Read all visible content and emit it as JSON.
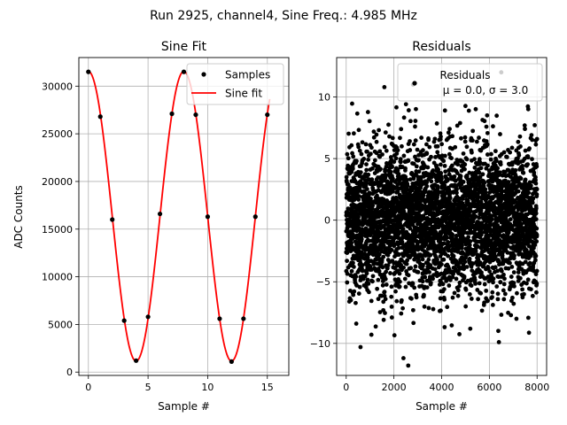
{
  "figure": {
    "suptitle": "Run 2925, channel4, Sine Freq.: 4.985 MHz"
  },
  "chart_data": [
    {
      "type": "scatter+line",
      "title": "Sine Fit",
      "xlabel": "Sample #",
      "ylabel": "ADC Counts",
      "xlim": [
        -0.8,
        16.8
      ],
      "ylim": [
        -350,
        33000
      ],
      "xticks": [
        0,
        5,
        10,
        15
      ],
      "yticks": [
        0,
        5000,
        10000,
        15000,
        20000,
        25000,
        30000
      ],
      "grid": true,
      "legend_position": "top-right",
      "series": [
        {
          "name": "Samples",
          "kind": "scatter",
          "color": "#000000",
          "x": [
            0,
            1,
            2,
            3,
            4,
            5,
            6,
            7,
            8,
            9,
            10,
            11,
            12,
            13,
            14,
            15
          ],
          "y": [
            31500,
            26800,
            16000,
            5400,
            1200,
            5800,
            16600,
            27100,
            31500,
            27000,
            16300,
            5600,
            1100,
            5600,
            16300,
            27000
          ]
        },
        {
          "name": "Sine fit",
          "kind": "line",
          "color": "#ff0000",
          "amplitude": 15200,
          "offset": 16350,
          "period_samples": 8,
          "phase_peak_at": 0,
          "x_range": [
            0,
            15.2
          ]
        }
      ]
    },
    {
      "type": "scatter",
      "title": "Residuals",
      "xlabel": "Sample #",
      "ylabel": "",
      "xlim": [
        -400,
        8400
      ],
      "ylim": [
        -12.6,
        13.2
      ],
      "xticks": [
        0,
        2000,
        4000,
        6000,
        8000
      ],
      "yticks": [
        -10,
        -5,
        0,
        5,
        10
      ],
      "grid": true,
      "legend_position": "top-right",
      "legend_lines": [
        "Residuals",
        "μ = 0.0, σ = 3.0"
      ],
      "mean": 0.0,
      "std": 3.0,
      "n_points": 8000,
      "color": "#000000",
      "notable_points": [
        {
          "x": 6500,
          "y": 12.0
        },
        {
          "x": 1600,
          "y": 10.8
        },
        {
          "x": 2800,
          "y": 11.0
        },
        {
          "x": 2600,
          "y": -11.8
        },
        {
          "x": 2400,
          "y": -11.2
        },
        {
          "x": 600,
          "y": -10.3
        },
        {
          "x": 6400,
          "y": -9.9
        }
      ]
    }
  ]
}
